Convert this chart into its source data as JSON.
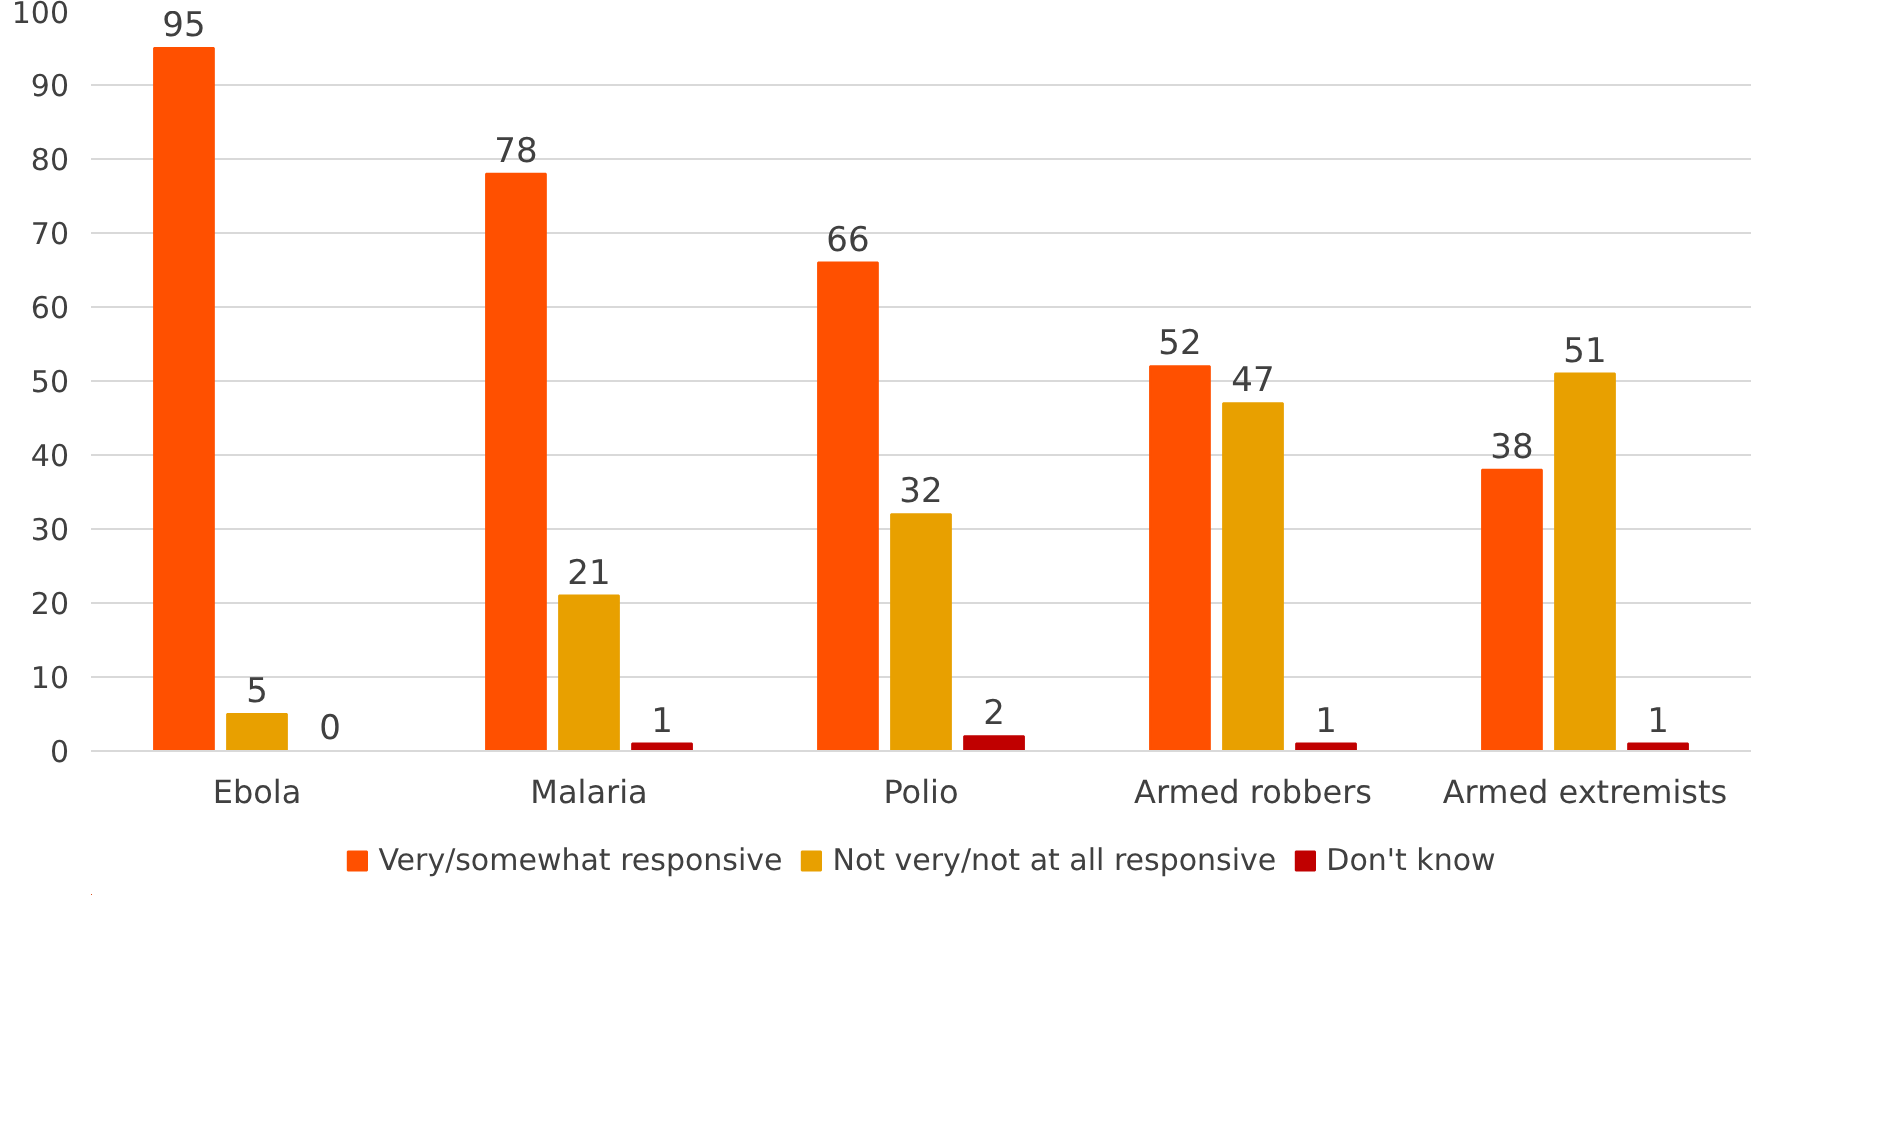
{
  "chart_data": {
    "type": "bar",
    "categories": [
      "Ebola",
      "Malaria",
      "Polio",
      "Armed robbers",
      "Armed extremists"
    ],
    "series": [
      {
        "name": "Very/somewhat responsive",
        "color": "#ff5000",
        "values": [
          95,
          78,
          66,
          52,
          38
        ]
      },
      {
        "name": "Not very/not at all responsive",
        "color": "#e8a000",
        "values": [
          5,
          21,
          32,
          47,
          51
        ]
      },
      {
        "name": "Don't know",
        "color": "#c00000",
        "values": [
          0,
          1,
          2,
          1,
          1
        ]
      }
    ],
    "ylim": [
      0,
      100
    ],
    "yticks": [
      0,
      10,
      20,
      30,
      40,
      50,
      60,
      70,
      80,
      90,
      100
    ],
    "grid": "y",
    "legend": "bottom",
    "data_labels": true
  }
}
